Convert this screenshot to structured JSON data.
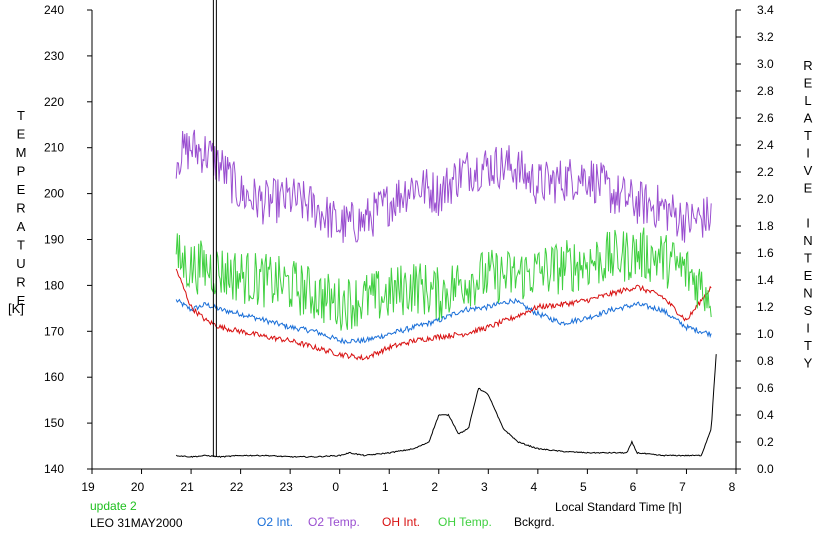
{
  "chart_data": {
    "type": "line",
    "xlabel": "Local Standard Time [h]",
    "ylabel_left": "TEMPERATURE",
    "ylabel_left_unit": "[K]",
    "ylabel_right": "RELATIVE INTENSITY",
    "x_ticks": [
      "19",
      "20",
      "21",
      "22",
      "23",
      "0",
      "1",
      "2",
      "3",
      "4",
      "5",
      "6",
      "7",
      "8"
    ],
    "x_tick_positions": [
      19,
      20,
      21,
      22,
      23,
      24,
      25,
      26,
      27,
      28,
      29,
      30,
      31,
      32
    ],
    "xlim": [
      19,
      32
    ],
    "ylim_left": [
      140,
      240
    ],
    "yticks_left": [
      "140",
      "150",
      "160",
      "170",
      "180",
      "190",
      "200",
      "210",
      "220",
      "230",
      "240"
    ],
    "ylim_right": [
      0.0,
      3.4
    ],
    "yticks_right": [
      "0.0",
      "0.2",
      "0.4",
      "0.6",
      "0.8",
      "1.0",
      "1.2",
      "1.4",
      "1.6",
      "1.8",
      "2.0",
      "2.2",
      "2.4",
      "2.6",
      "2.8",
      "3.0",
      "3.2",
      "3.4"
    ],
    "marker_line_x": 21.45,
    "series": [
      {
        "name": "O2 Int.",
        "color": "#1a6fd8",
        "axis": "right",
        "noise": 0.02,
        "x": [
          20.7,
          21.0,
          21.3,
          21.6,
          22.0,
          22.5,
          23.0,
          23.5,
          24.0,
          24.5,
          25.0,
          25.5,
          26.0,
          26.5,
          27.0,
          27.5,
          28.0,
          28.5,
          29.0,
          29.5,
          30.0,
          30.5,
          31.0,
          31.5
        ],
        "values": [
          1.25,
          1.18,
          1.22,
          1.18,
          1.15,
          1.1,
          1.05,
          1.02,
          0.95,
          0.95,
          1.0,
          1.05,
          1.1,
          1.18,
          1.2,
          1.25,
          1.15,
          1.08,
          1.12,
          1.18,
          1.22,
          1.18,
          1.05,
          1.0
        ]
      },
      {
        "name": "O2 Temp.",
        "color": "#9a4fd0",
        "axis": "left",
        "noise": 5,
        "x": [
          20.7,
          21.0,
          21.3,
          21.6,
          22.0,
          22.5,
          23.0,
          23.5,
          24.0,
          24.5,
          25.0,
          25.5,
          26.0,
          26.5,
          27.0,
          27.5,
          28.0,
          28.5,
          29.0,
          29.5,
          30.0,
          30.5,
          31.0,
          31.5
        ],
        "values": [
          208,
          210,
          209,
          206,
          200,
          198,
          199,
          197,
          193,
          194,
          198,
          202,
          200,
          205,
          206,
          206,
          202,
          203,
          204,
          200,
          198,
          197,
          194,
          195
        ]
      },
      {
        "name": "OH Int.",
        "color": "#d81010",
        "axis": "right",
        "noise": 0.02,
        "x": [
          20.7,
          21.0,
          21.3,
          21.6,
          22.0,
          22.5,
          23.0,
          23.5,
          24.0,
          24.5,
          25.0,
          25.5,
          26.0,
          26.5,
          27.0,
          27.5,
          28.0,
          28.5,
          29.0,
          29.5,
          30.0,
          30.5,
          31.0,
          31.5
        ],
        "values": [
          1.48,
          1.2,
          1.1,
          1.05,
          1.02,
          0.98,
          0.95,
          0.9,
          0.85,
          0.82,
          0.9,
          0.95,
          0.98,
          1.0,
          1.05,
          1.12,
          1.2,
          1.22,
          1.25,
          1.3,
          1.35,
          1.28,
          1.1,
          1.35
        ]
      },
      {
        "name": "OH Temp.",
        "color": "#40d040",
        "axis": "left",
        "noise": 6,
        "x": [
          20.7,
          21.0,
          21.3,
          21.6,
          22.0,
          22.5,
          23.0,
          23.5,
          24.0,
          24.5,
          25.0,
          25.5,
          26.0,
          26.5,
          27.0,
          27.5,
          28.0,
          28.5,
          29.0,
          29.5,
          30.0,
          30.5,
          31.0,
          31.5
        ],
        "values": [
          186,
          184,
          184,
          183,
          182,
          181,
          180,
          178,
          176,
          177,
          178,
          180,
          178,
          181,
          182,
          182,
          183,
          184,
          185,
          186,
          187,
          186,
          183,
          178
        ]
      },
      {
        "name": "Bckgrd.",
        "color": "#000000",
        "axis": "right",
        "noise": 0.004,
        "x": [
          20.7,
          21.0,
          21.3,
          21.6,
          22.0,
          22.5,
          23.0,
          23.5,
          24.0,
          24.2,
          24.5,
          25.0,
          25.5,
          25.8,
          26.0,
          26.2,
          26.4,
          26.6,
          26.7,
          26.8,
          27.0,
          27.3,
          27.6,
          28.0,
          28.5,
          29.0,
          29.5,
          29.8,
          29.9,
          30.0,
          30.5,
          31.0,
          31.3,
          31.5,
          31.6
        ],
        "values": [
          0.1,
          0.09,
          0.1,
          0.09,
          0.1,
          0.1,
          0.09,
          0.09,
          0.1,
          0.12,
          0.1,
          0.12,
          0.15,
          0.2,
          0.4,
          0.4,
          0.26,
          0.3,
          0.45,
          0.6,
          0.55,
          0.3,
          0.2,
          0.15,
          0.13,
          0.12,
          0.12,
          0.12,
          0.2,
          0.12,
          0.1,
          0.1,
          0.1,
          0.3,
          0.85
        ]
      }
    ]
  },
  "annotation": {
    "line1": "update 2",
    "line2": "LEO 31MAY2000",
    "line1_color": "#20c020",
    "line2_color": "#000000"
  }
}
